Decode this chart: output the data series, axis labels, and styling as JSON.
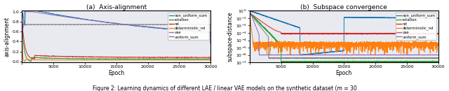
{
  "title_left": "(a)  Axis-alignment",
  "title_right": "(b)  Subspace convergence",
  "caption": "Figure 2: Learning dynamics of different LAE / linear VAE models on the synthetic dataset (m = 30",
  "xlabel": "Epoch",
  "ylabel_left": "axis-alignment",
  "ylabel_right": "subspace-distance",
  "xlim": [
    0,
    30000
  ],
  "xticks": [
    0,
    5000,
    10000,
    15000,
    20000,
    25000,
    30000
  ],
  "ylim_left": [
    -0.02,
    1.02
  ],
  "yticks_left": [
    0.0,
    0.2,
    0.4,
    0.6,
    0.8,
    1.0
  ],
  "background_color": "#e8eaf0",
  "legend_labels": [
    "non_uniform_sum",
    "rotation",
    "nd",
    "deterministic_nd",
    "vae",
    "uniform_sum"
  ],
  "line_colors": [
    "#1f77b4",
    "#2ca02c",
    "#d62728",
    "#ff7f0e",
    "#9467bd",
    "#7f7f7f"
  ],
  "dashed_line_y_left": 0.745,
  "seed": 42
}
